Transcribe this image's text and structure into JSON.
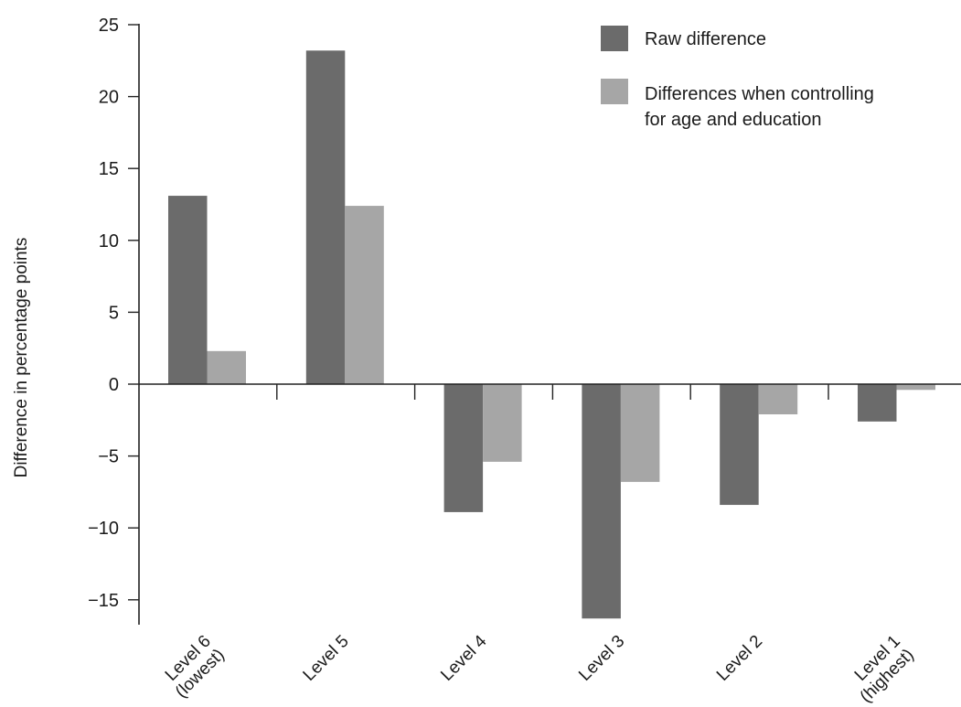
{
  "chart_data": {
    "type": "bar",
    "categories": [
      [
        "Level 6",
        "(lowest)"
      ],
      [
        "Level 5"
      ],
      [
        "Level 4"
      ],
      [
        "Level 3"
      ],
      [
        "Level 2"
      ],
      [
        "Level 1",
        "(highest)"
      ]
    ],
    "series": [
      {
        "name": "Raw difference",
        "color": "#6b6b6b",
        "values": [
          13.1,
          23.2,
          -8.9,
          -16.3,
          -8.4,
          -2.6
        ]
      },
      {
        "name": "Differences when controlling for age and education",
        "name_lines": [
          "Differences when controlling",
          "for age and education"
        ],
        "color": "#a6a6a6",
        "values": [
          2.3,
          12.4,
          -5.4,
          -6.8,
          -2.1,
          -0.4
        ]
      }
    ],
    "title": "",
    "xlabel": "",
    "ylabel": "Difference in percentage points",
    "ylim": [
      -16.7,
      25
    ],
    "yticks": [
      25,
      20,
      15,
      10,
      5,
      0,
      -5,
      -10,
      -15
    ],
    "ytick_labels": [
      "25",
      "20",
      "15",
      "10",
      "5",
      "0",
      "−5",
      "−10",
      "−15"
    ],
    "grid": false,
    "legend_position": "top-right"
  }
}
